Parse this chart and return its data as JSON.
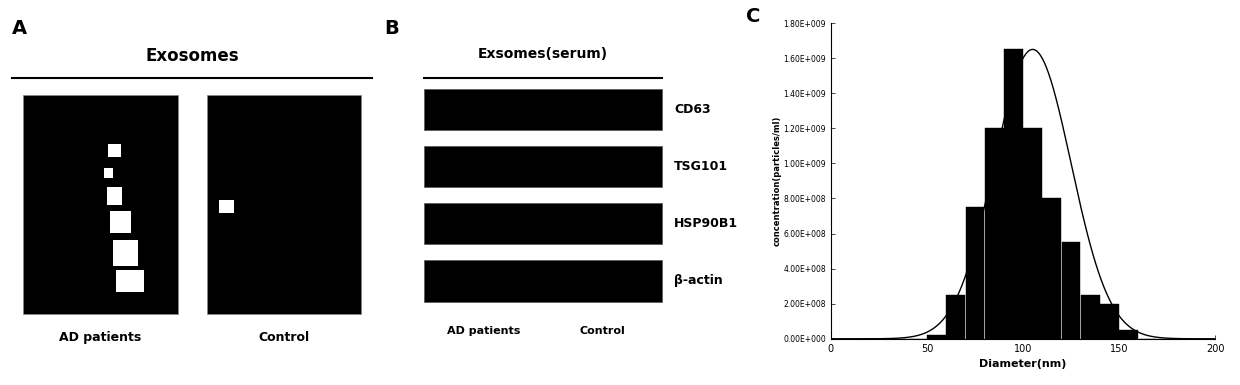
{
  "panel_A_label": "A",
  "panel_B_label": "B",
  "panel_C_label": "C",
  "panel_A_title": "Exosomes",
  "panel_B_title": "Exsomes(serum)",
  "panel_A_sublabels": [
    "AD patients",
    "Control"
  ],
  "panel_B_sublabels": [
    "AD patients",
    "Control"
  ],
  "panel_B_bands": [
    "CD63",
    "TSG101",
    "HSP90B1",
    "β-actin"
  ],
  "hist_bin_centers": [
    5,
    15,
    25,
    35,
    45,
    55,
    65,
    75,
    85,
    95,
    105,
    115,
    125,
    135,
    145,
    155,
    165,
    175,
    185,
    195
  ],
  "hist_values": [
    0.0,
    0.0,
    0.0,
    0.0,
    0.0,
    20000000.0,
    250000000.0,
    750000000.0,
    1200000000.0,
    1650000000.0,
    1200000000.0,
    800000000.0,
    550000000.0,
    250000000.0,
    200000000.0,
    50000000.0,
    0.0,
    0.0,
    0.0,
    0.0
  ],
  "hist_xlim": [
    0,
    200
  ],
  "hist_ylim": [
    0,
    1800000000.0
  ],
  "hist_yticks": [
    0.0,
    200000000.0,
    400000000.0,
    600000000.0,
    800000000.0,
    1000000000.0,
    1200000000.0,
    1400000000.0,
    1600000000.0,
    1800000000.0
  ],
  "hist_xticks": [
    0,
    50,
    100,
    150,
    200
  ],
  "hist_xlabel": "Diameter(nm)",
  "hist_ylabel": "concentration(particles/ml)",
  "background_color": "#ffffff",
  "bar_color": "#000000",
  "bar_edge_color": "#000000",
  "curve_color": "#000000",
  "gauss_mean": 105,
  "gauss_sigma": 20,
  "gauss_peak": 1650000000.0
}
